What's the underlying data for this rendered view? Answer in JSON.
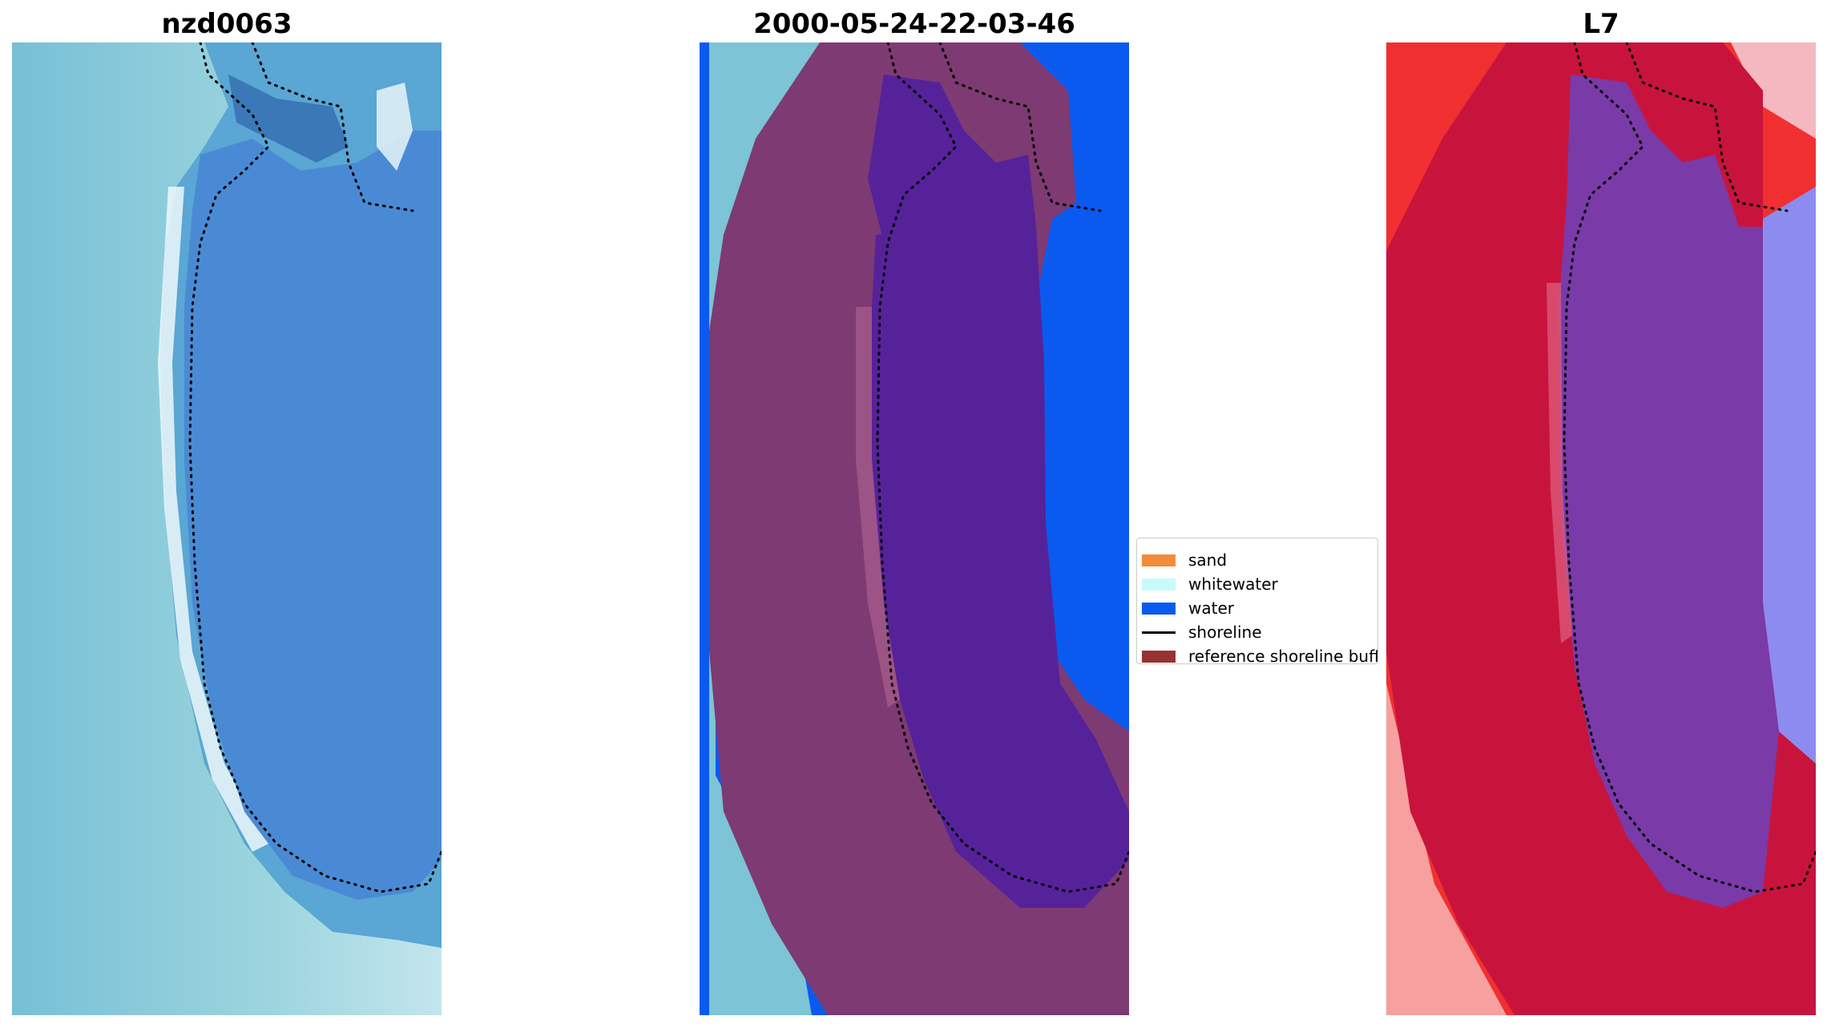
{
  "panels": [
    {
      "title": "nzd0063"
    },
    {
      "title": "2000-05-24-22-03-46"
    },
    {
      "title": "L7"
    }
  ],
  "legend": {
    "items": [
      {
        "label": "sand",
        "kind": "patch",
        "color": "#f28c3a"
      },
      {
        "label": "whitewater",
        "kind": "patch",
        "color": "#c8fafa"
      },
      {
        "label": "water",
        "kind": "patch",
        "color": "#0a5af0"
      },
      {
        "label": "shoreline",
        "kind": "line",
        "color": "#000000"
      },
      {
        "label": "reference shoreline buff",
        "kind": "patch",
        "color": "#963232"
      }
    ]
  },
  "colors": {
    "rgb_water": "#4a8fd6",
    "rgb_shore": "#8fd0d8",
    "classified_water": "#0a5af0",
    "buffer_overlay": "#7e3a72",
    "index_red": "#d41840",
    "index_purple": "#7a3aa8",
    "index_blue": "#8c8cf0"
  }
}
